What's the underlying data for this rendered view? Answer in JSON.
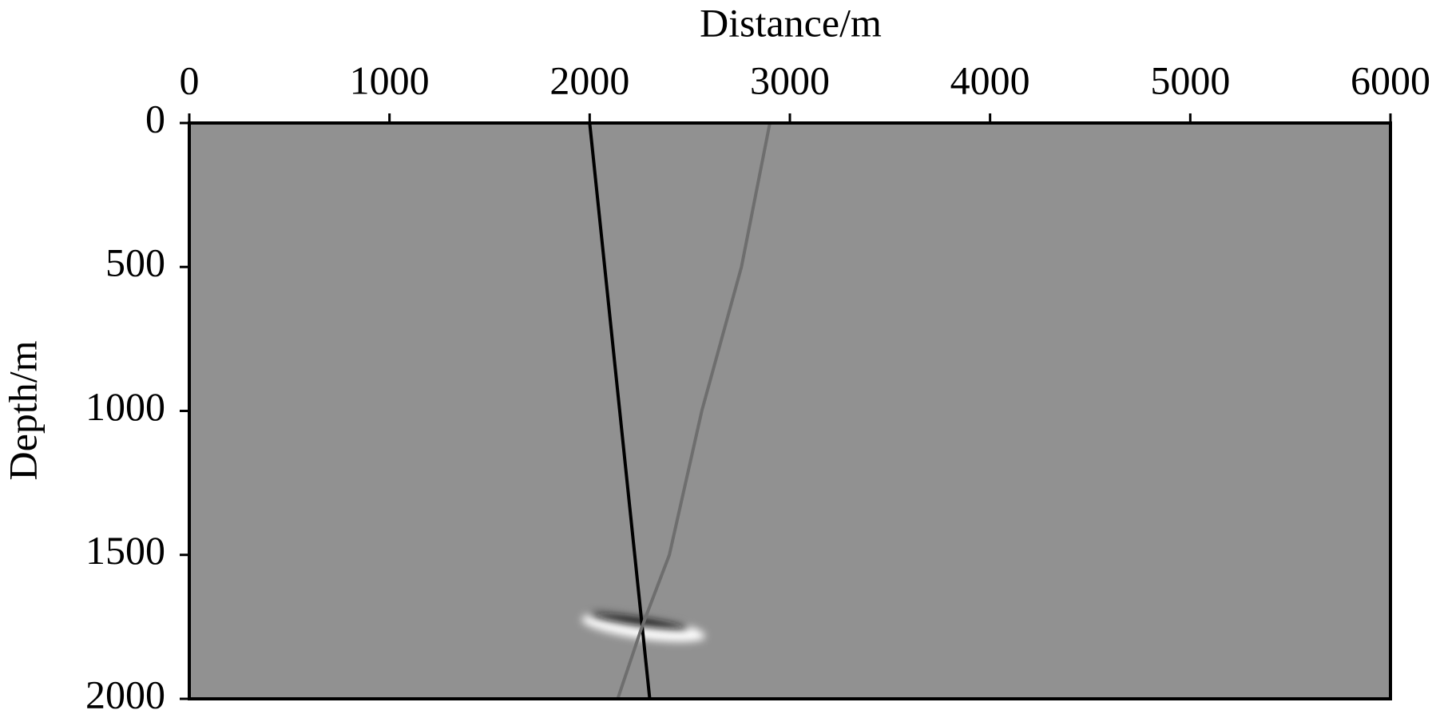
{
  "chart_data": {
    "type": "line",
    "x_label": "Distance/m",
    "y_label": "Depth/m",
    "xlim": [
      0,
      6000
    ],
    "xticks": [
      0,
      1000,
      2000,
      3000,
      4000,
      5000,
      6000
    ],
    "ylim": [
      0,
      2000
    ],
    "yticks": [
      0,
      500,
      1000,
      1500,
      2000
    ],
    "y_inverted": true,
    "x_axis_position": "top",
    "background": "#919191",
    "series": [
      {
        "color": "#000000",
        "x": [
          2000,
          2300
        ],
        "values": [
          0,
          2000
        ]
      },
      {
        "color": "#6e6e6e",
        "x": [
          2900,
          2758,
          2560,
          2398,
          2261,
          2140
        ],
        "values": [
          0,
          500,
          1000,
          1500,
          1750,
          2000
        ]
      }
    ]
  }
}
